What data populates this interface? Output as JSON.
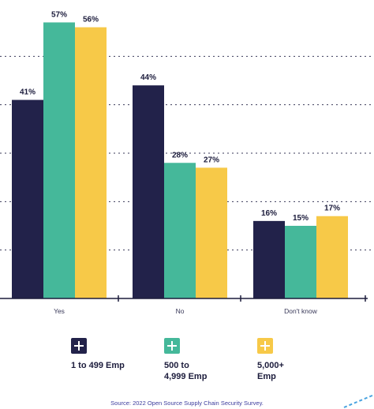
{
  "chart_data": {
    "type": "bar",
    "categories": [
      "Yes",
      "No",
      "Don't know"
    ],
    "series": [
      {
        "name": "1 to 499 Emp",
        "color": "#22224a",
        "values": [
          41,
          44,
          16
        ],
        "labels": [
          "41%",
          "44%",
          "16%"
        ]
      },
      {
        "name": "500 to 4,999 Emp",
        "color": "#45b89a",
        "values": [
          57,
          28,
          15
        ],
        "labels": [
          "57%",
          "28%",
          "15%"
        ]
      },
      {
        "name": "5,000+ Emp",
        "color": "#f7c948",
        "values": [
          56,
          27,
          17
        ],
        "labels": [
          "56%",
          "27%",
          "17%"
        ]
      }
    ],
    "ylim": [
      0,
      60
    ],
    "grid": true,
    "legend_position": "bottom"
  },
  "legend": {
    "items": [
      {
        "label": "1 to 499 Emp",
        "color": "#22224a"
      },
      {
        "label": "500 to\n4,999 Emp",
        "color": "#45b89a"
      },
      {
        "label": "5,000+\nEmp",
        "color": "#f7c948"
      }
    ]
  },
  "source": "Source: 2022 Open Source Supply Chain Security Survey."
}
